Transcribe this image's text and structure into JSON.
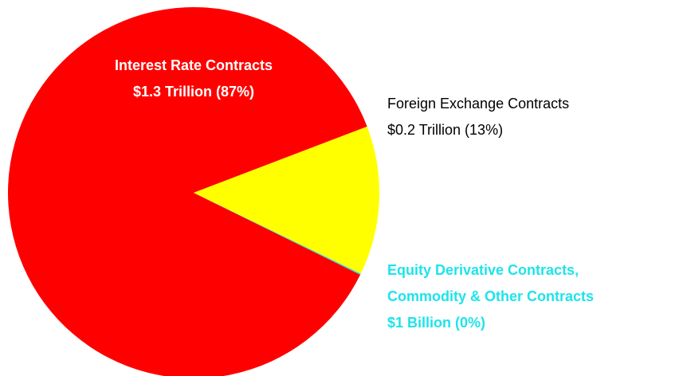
{
  "chart_data": {
    "type": "pie",
    "categories": [
      [
        "Interest Rate Contracts"
      ],
      [
        "Foreign Exchange Contracts"
      ],
      [
        "Equity Derivative Contracts,",
        "Commodity & Other Contracts"
      ]
    ],
    "values": [
      87,
      13,
      0.1
    ],
    "value_labels": [
      "$1.3 Trillion (87%)",
      "$0.2 Trillion (13%)",
      "$1 Billion (0%)"
    ],
    "colors": [
      "#ff0000",
      "#ffff00",
      "#1ee3ea"
    ],
    "label_colors": [
      "#ffffff",
      "#000000",
      "#1ee3ea"
    ]
  }
}
